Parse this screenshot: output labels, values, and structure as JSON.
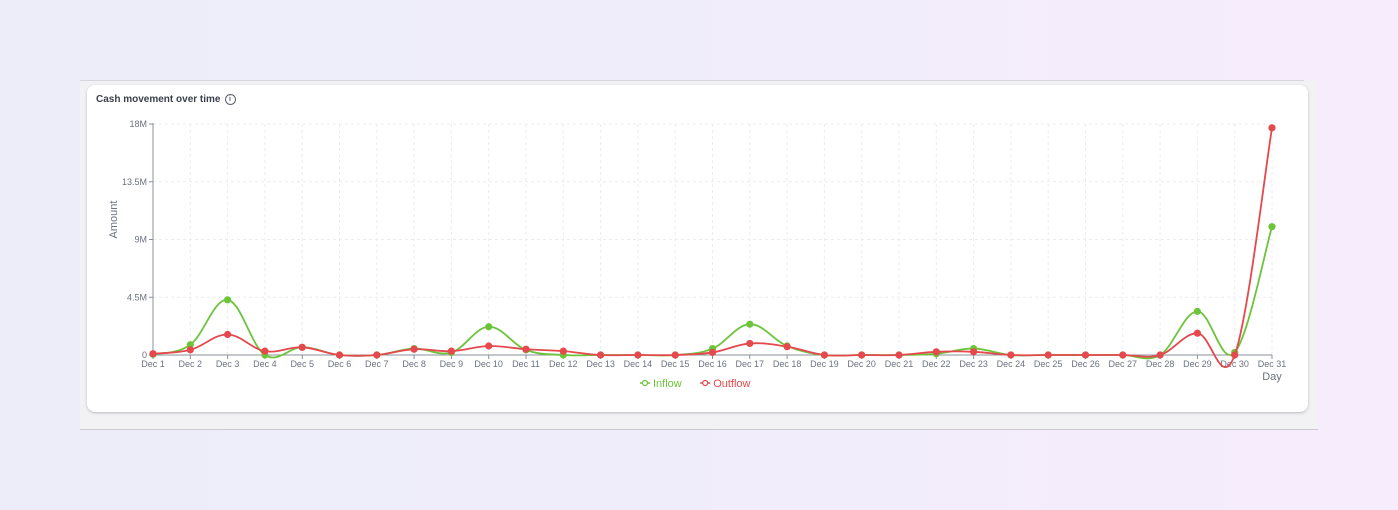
{
  "card": {
    "title": "Cash movement over time",
    "info_icon": "info-circle-icon"
  },
  "chart_data": {
    "type": "line",
    "title": "Cash movement over time",
    "xlabel": "Day",
    "ylabel": "Amount",
    "ylim": [
      0,
      18000000
    ],
    "yticks": [
      0,
      4500000,
      9000000,
      13500000,
      18000000
    ],
    "ytick_labels": [
      "0",
      "4.5M",
      "9M",
      "13.5M",
      "18M"
    ],
    "grid": true,
    "legend_position": "bottom-center",
    "categories": [
      "Dec 1",
      "Dec 2",
      "Dec 3",
      "Dec 4",
      "Dec 5",
      "Dec 6",
      "Dec 7",
      "Dec 8",
      "Dec 9",
      "Dec 10",
      "Dec 11",
      "Dec 12",
      "Dec 13",
      "Dec 14",
      "Dec 15",
      "Dec 16",
      "Dec 17",
      "Dec 18",
      "Dec 19",
      "Dec 20",
      "Dec 21",
      "Dec 22",
      "Dec 23",
      "Dec 24",
      "Dec 25",
      "Dec 26",
      "Dec 27",
      "Dec 28",
      "Dec 29",
      "Dec 30",
      "Dec 31"
    ],
    "series": [
      {
        "name": "Inflow",
        "color": "#6cc43a",
        "values": [
          50000,
          800000,
          4300000,
          0,
          600000,
          0,
          0,
          500000,
          200000,
          2200000,
          400000,
          0,
          0,
          0,
          0,
          500000,
          2400000,
          700000,
          0,
          0,
          0,
          100000,
          500000,
          0,
          0,
          0,
          0,
          0,
          3400000,
          200000,
          10000000
        ]
      },
      {
        "name": "Outflow",
        "color": "#e5484d",
        "values": [
          100000,
          400000,
          1600000,
          300000,
          600000,
          0,
          0,
          450000,
          300000,
          700000,
          450000,
          300000,
          0,
          0,
          0,
          200000,
          900000,
          650000,
          0,
          0,
          0,
          250000,
          250000,
          0,
          0,
          0,
          0,
          0,
          1700000,
          0,
          17700000
        ]
      }
    ]
  }
}
